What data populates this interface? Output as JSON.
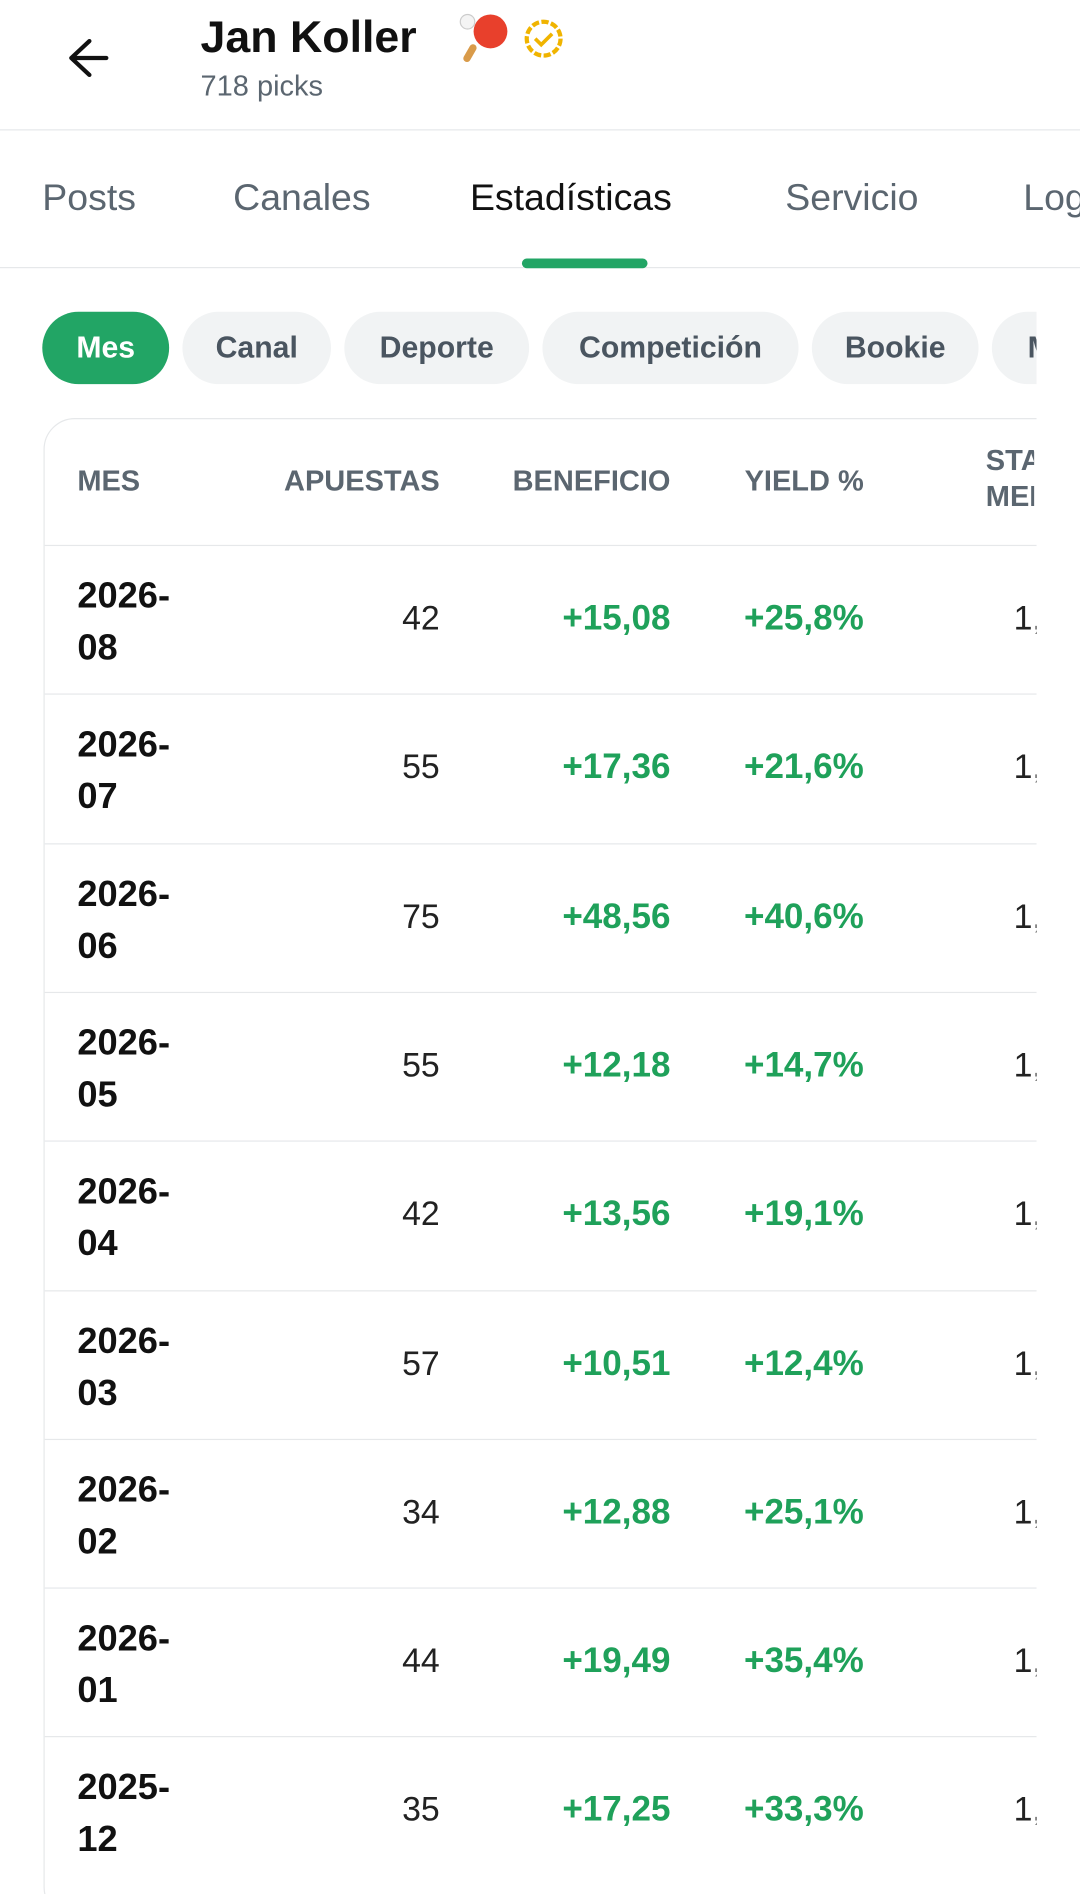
{
  "header": {
    "title": "Jan Koller",
    "subtitle": "718 picks"
  },
  "tabs": [
    "Posts",
    "Canales",
    "Estadísticas",
    "Servicio",
    "Log"
  ],
  "filters": [
    "Mes",
    "Canal",
    "Deporte",
    "Competición",
    "Bookie",
    "M"
  ],
  "table": {
    "columns": [
      "MES",
      "APUESTAS",
      "BENEFICIO",
      "YIELD %",
      "STAKE MEDIO"
    ],
    "rows": [
      [
        "2026-08",
        "42",
        "+15,08",
        "+25,8%",
        "1,"
      ],
      [
        "2026-07",
        "55",
        "+17,36",
        "+21,6%",
        "1,"
      ],
      [
        "2026-06",
        "75",
        "+48,56",
        "+40,6%",
        "1,"
      ],
      [
        "2026-05",
        "55",
        "+12,18",
        "+14,7%",
        "1,"
      ],
      [
        "2026-04",
        "42",
        "+13,56",
        "+19,1%",
        "1,"
      ],
      [
        "2026-03",
        "57",
        "+10,51",
        "+12,4%",
        "1,"
      ],
      [
        "2026-02",
        "34",
        "+12,88",
        "+25,1%",
        "1,"
      ],
      [
        "2026-01",
        "44",
        "+19,49",
        "+35,4%",
        "1,"
      ],
      [
        "2025-12",
        "35",
        "+17,25",
        "+33,3%",
        "1,"
      ]
    ]
  }
}
